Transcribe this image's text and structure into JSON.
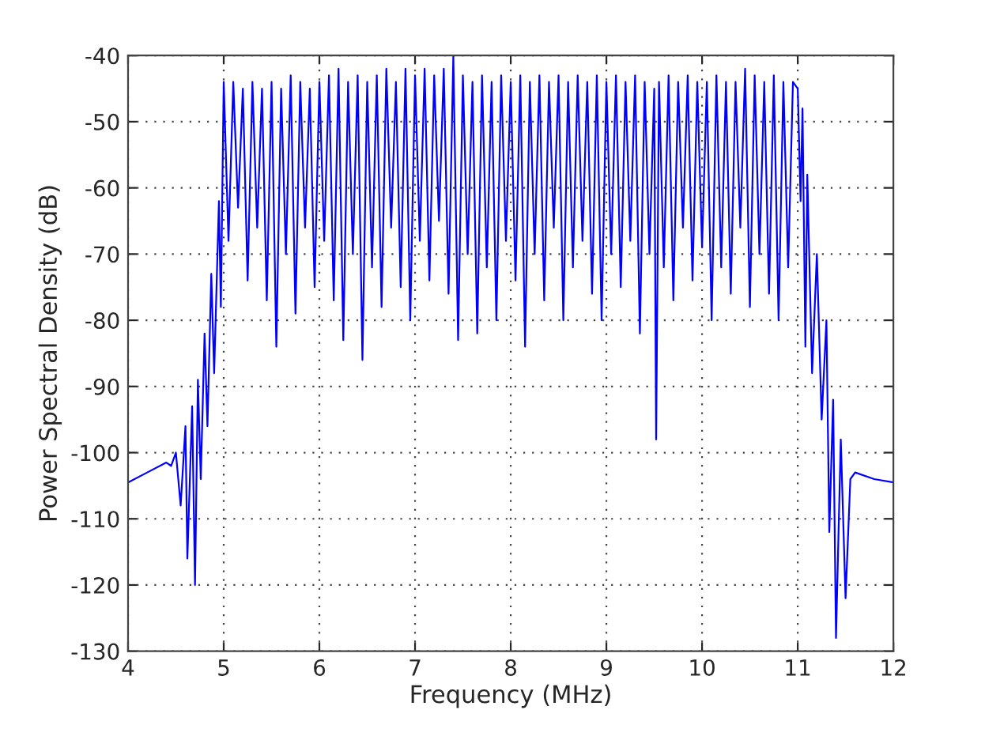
{
  "chart_data": {
    "type": "line",
    "xlabel": "Frequency (MHz)",
    "ylabel": "Power Spectral Density (dB)",
    "xlim": [
      4,
      12
    ],
    "ylim": [
      -130,
      -40
    ],
    "xticks": [
      4,
      5,
      6,
      7,
      8,
      9,
      10,
      11,
      12
    ],
    "yticks": [
      -130,
      -120,
      -110,
      -100,
      -90,
      -80,
      -70,
      -60,
      -50,
      -40
    ],
    "grid": true,
    "marker": "none",
    "line_style": "solid",
    "series": [
      {
        "color": "#0000ff",
        "x": [
          4.0,
          4.2,
          4.4,
          4.45,
          4.5,
          4.55,
          4.6,
          4.62,
          4.67,
          4.7,
          4.73,
          4.76,
          4.8,
          4.83,
          4.87,
          4.9,
          4.95,
          4.97,
          5.0,
          5.05,
          5.1,
          5.15,
          5.2,
          5.25,
          5.3,
          5.35,
          5.4,
          5.45,
          5.5,
          5.55,
          5.6,
          5.65,
          5.7,
          5.75,
          5.8,
          5.85,
          5.9,
          5.95,
          6.0,
          6.05,
          6.1,
          6.15,
          6.2,
          6.25,
          6.3,
          6.35,
          6.4,
          6.45,
          6.5,
          6.55,
          6.6,
          6.65,
          6.7,
          6.75,
          6.8,
          6.85,
          6.9,
          6.95,
          7.0,
          7.05,
          7.1,
          7.15,
          7.2,
          7.25,
          7.3,
          7.35,
          7.4,
          7.45,
          7.5,
          7.55,
          7.6,
          7.65,
          7.7,
          7.75,
          7.8,
          7.85,
          7.9,
          7.95,
          8.0,
          8.05,
          8.1,
          8.15,
          8.2,
          8.25,
          8.3,
          8.35,
          8.4,
          8.45,
          8.5,
          8.55,
          8.6,
          8.65,
          8.7,
          8.75,
          8.8,
          8.85,
          8.9,
          8.95,
          9.0,
          9.05,
          9.1,
          9.15,
          9.2,
          9.25,
          9.3,
          9.35,
          9.4,
          9.45,
          9.5,
          9.52,
          9.55,
          9.6,
          9.65,
          9.7,
          9.75,
          9.8,
          9.85,
          9.9,
          9.95,
          10.0,
          10.05,
          10.1,
          10.15,
          10.2,
          10.25,
          10.3,
          10.35,
          10.4,
          10.45,
          10.5,
          10.55,
          10.6,
          10.65,
          10.7,
          10.75,
          10.8,
          10.85,
          10.9,
          10.95,
          11.0,
          11.03,
          11.05,
          11.08,
          11.1,
          11.15,
          11.2,
          11.25,
          11.3,
          11.33,
          11.37,
          11.4,
          11.45,
          11.5,
          11.55,
          11.6,
          11.8,
          12.0
        ],
        "values": [
          -104.5,
          -103,
          -101.5,
          -102,
          -100,
          -108,
          -96,
          -116,
          -93,
          -120,
          -89,
          -104,
          -82,
          -96,
          -73,
          -88,
          -62,
          -78,
          -44,
          -68,
          -44,
          -63,
          -45,
          -74,
          -44,
          -66,
          -45,
          -77,
          -44,
          -84,
          -45,
          -70,
          -43,
          -79,
          -44,
          -66,
          -45,
          -75,
          -44,
          -68,
          -43,
          -77,
          -42,
          -83,
          -44,
          -70,
          -43,
          -86,
          -44,
          -72,
          -43,
          -78,
          -42,
          -66,
          -44,
          -75,
          -42,
          -80,
          -43,
          -68,
          -42,
          -74,
          -43,
          -65,
          -42,
          -76,
          -40,
          -83,
          -43,
          -70,
          -44,
          -82,
          -43,
          -72,
          -44,
          -80,
          -43,
          -68,
          -44,
          -74,
          -43,
          -84,
          -44,
          -70,
          -43,
          -77,
          -44,
          -66,
          -43,
          -80,
          -44,
          -72,
          -43,
          -68,
          -44,
          -76,
          -43,
          -80,
          -44,
          -70,
          -43,
          -75,
          -44,
          -68,
          -43,
          -82,
          -44,
          -70,
          -45,
          -98,
          -44,
          -72,
          -43,
          -77,
          -44,
          -66,
          -43,
          -74,
          -44,
          -69,
          -44,
          -80,
          -43,
          -72,
          -44,
          -76,
          -44,
          -66,
          -42,
          -78,
          -43,
          -70,
          -44,
          -76,
          -43,
          -80,
          -44,
          -72,
          -44,
          -45,
          -62,
          -48,
          -84,
          -58,
          -88,
          -70,
          -95,
          -80,
          -112,
          -92,
          -128,
          -98,
          -122,
          -104,
          -103,
          -104,
          -104.5
        ]
      }
    ]
  }
}
